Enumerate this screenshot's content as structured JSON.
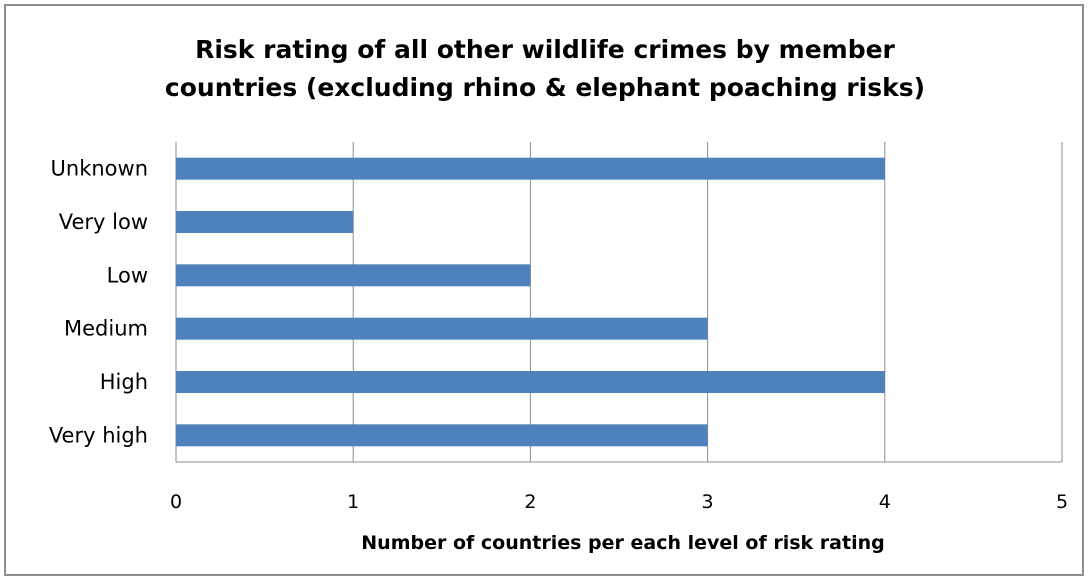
{
  "chart_data": {
    "type": "bar",
    "orientation": "horizontal",
    "title_lines": [
      "Risk rating of all other wildlife crimes by member",
      "countries (excluding rhino & elephant poaching risks)"
    ],
    "xlabel": "Number of countries per each level of risk rating",
    "ylabel": "",
    "categories": [
      "Unknown",
      "Very low",
      "Low",
      "Medium",
      "High",
      "Very high"
    ],
    "values": [
      4,
      1,
      2,
      3,
      4,
      3
    ],
    "xlim": [
      0,
      5
    ],
    "xticks": [
      "0",
      "1",
      "2",
      "3",
      "4",
      "5"
    ],
    "grid": "vertical",
    "legend": "none",
    "bar_color": "#4f81bd"
  }
}
